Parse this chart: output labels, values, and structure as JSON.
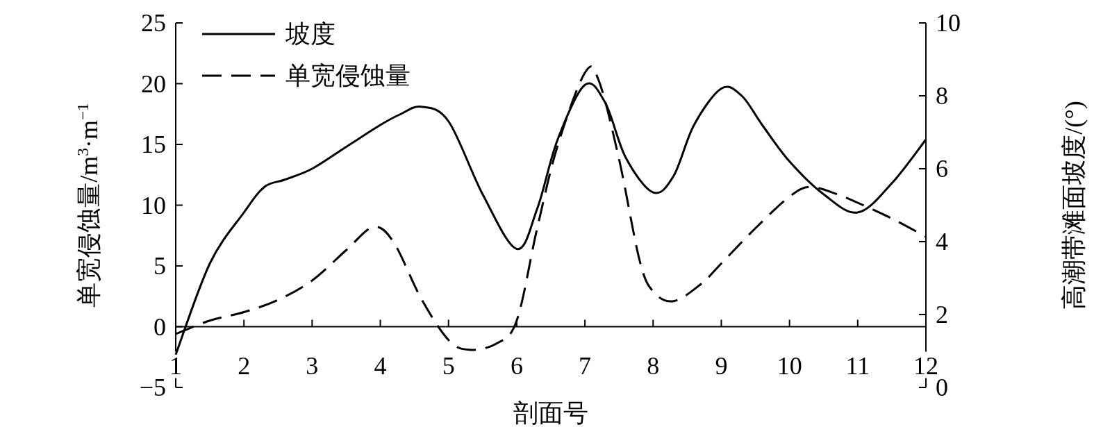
{
  "chart_data": {
    "type": "line",
    "xlabel": "剖面号",
    "ylabel": "单宽侵蚀量/m$^{3}$·m$^{−1}$",
    "y2label": "高潮带滩面坡度/(°)",
    "legend": "top left",
    "grid": false,
    "marker": "none",
    "xlim": [
      1,
      12
    ],
    "xticks": [
      1,
      2,
      3,
      4,
      5,
      6,
      7,
      8,
      9,
      10,
      11,
      12
    ],
    "ylim": [
      -5,
      25
    ],
    "yticks": [
      {
        "value": -5,
        "label": "−5"
      },
      0,
      5,
      10,
      15,
      20,
      25
    ],
    "y2lim": [
      0,
      10
    ],
    "y2ticks": [
      0,
      2,
      4,
      6,
      8,
      10
    ],
    "series": [
      {
        "name": "坡度",
        "color": "#000000",
        "line_style": "solid",
        "axis": "y2",
        "x": [
          1,
          1.5,
          2,
          2.3,
          2.6,
          3,
          3.5,
          4,
          4.3,
          4.6,
          5,
          5.5,
          6,
          6.3,
          6.6,
          7,
          7.3,
          7.6,
          8,
          8.3,
          8.6,
          9,
          9.3,
          9.6,
          10,
          10.5,
          11,
          11.5,
          12
        ],
        "values": [
          0.9,
          3.4,
          4.8,
          5.5,
          5.7,
          6.0,
          6.6,
          7.2,
          7.5,
          7.7,
          7.3,
          5.3,
          3.8,
          4.9,
          6.8,
          8.3,
          7.8,
          6.3,
          5.35,
          5.8,
          7.2,
          8.2,
          8.0,
          7.2,
          6.2,
          5.3,
          4.8,
          5.6,
          6.8
        ]
      },
      {
        "name": "单宽侵蚀量",
        "color": "#000000",
        "line_style": "dashed",
        "x": [
          1,
          1.5,
          2,
          2.5,
          3,
          3.5,
          3.9,
          4.2,
          4.6,
          5,
          5.3,
          5.7,
          6,
          6.3,
          6.6,
          7,
          7.2,
          7.5,
          7.8,
          8,
          8.3,
          8.7,
          9,
          9.5,
          10,
          10.3,
          10.7,
          11,
          11.5,
          12
        ],
        "values": [
          -0.6,
          0.5,
          1.2,
          2.2,
          3.8,
          6.3,
          8.2,
          6.9,
          2.3,
          -1.1,
          -1.9,
          -1.4,
          0.5,
          8.1,
          14.9,
          20.9,
          20.3,
          13.8,
          5.5,
          2.9,
          2.1,
          3.5,
          5.2,
          8.1,
          10.7,
          11.5,
          10.9,
          10.2,
          8.9,
          7.4
        ]
      }
    ]
  }
}
